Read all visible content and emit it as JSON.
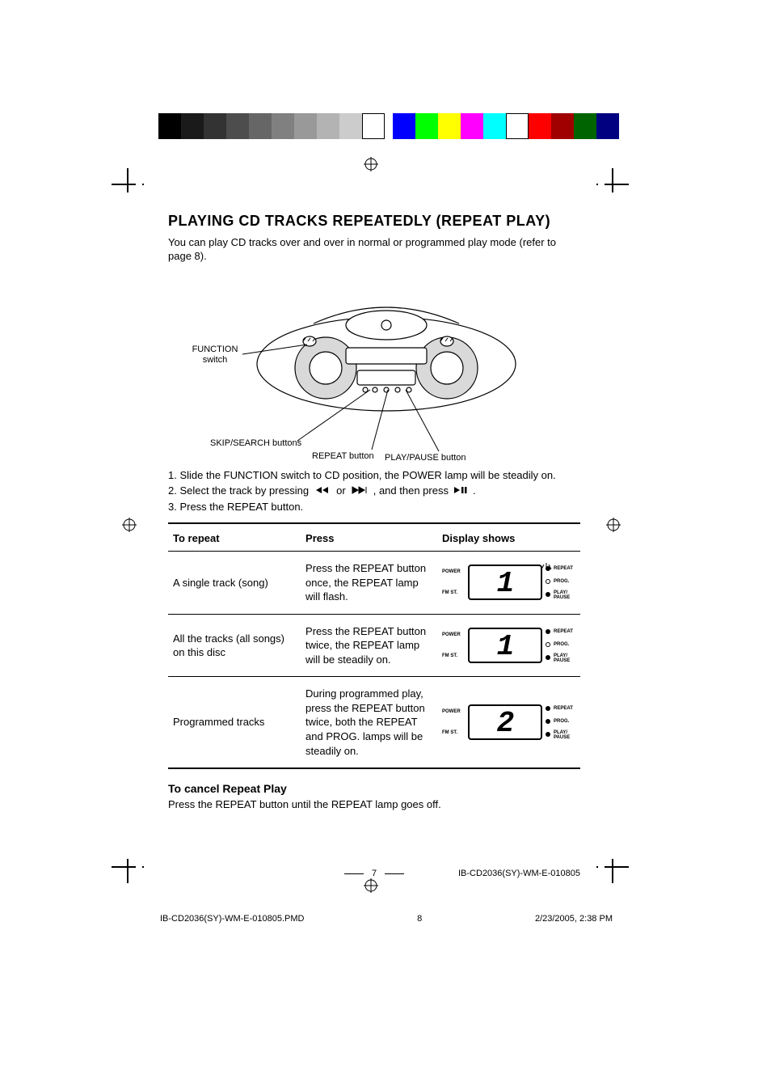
{
  "printer_marks": {
    "grayscale_bars": [
      "#000000",
      "#1a1a1a",
      "#333333",
      "#4d4d4d",
      "#666666",
      "#808080",
      "#999999",
      "#b3b3b3",
      "#cccccc",
      "#ffffff"
    ],
    "color_bars": [
      "#0000ff",
      "#00ff00",
      "#ffff00",
      "#ff00ff",
      "#00ffff",
      "#ffffff",
      "#ff0000",
      "#a00000",
      "#006400",
      "#000080"
    ]
  },
  "title": "PLAYING CD TRACKS REPEATEDLY (REPEAT PLAY)",
  "intro": "You can play CD tracks over and over in normal or programmed play mode (refer to page 8).",
  "diagram_callouts": {
    "function_switch": "FUNCTION switch",
    "skip_search": "SKIP/SEARCH buttons",
    "repeat_button": "REPEAT button",
    "play_pause": "PLAY/PAUSE button"
  },
  "steps": {
    "s1": "1. Slide the FUNCTION switch to CD position, the POWER lamp will be steadily on.",
    "s2a": "2. Select the track by pressing",
    "s2b": "or",
    "s2c": ", and then press",
    "s2d": ".",
    "s3": "3. Press the REPEAT button."
  },
  "table": {
    "headers": {
      "to_repeat": "To repeat",
      "press": "Press",
      "display": "Display shows"
    },
    "rows": [
      {
        "to_repeat": "A single track (song)",
        "press": "Press the REPEAT button once, the REPEAT lamp will flash.",
        "display": {
          "power_led": "on",
          "fmst_led": "off",
          "repeat_led": "on",
          "repeat_flash": true,
          "prog_led": "off",
          "play_led": "on",
          "digits": "1",
          "digit_fontsize": 36,
          "labels": {
            "power": "POWER",
            "fmst": "FM ST.",
            "repeat": "REPEAT",
            "prog": "PROG.",
            "play": "PLAY/\nPAUSE"
          }
        }
      },
      {
        "to_repeat": "All the tracks (all songs) on this disc",
        "press": "Press the REPEAT button twice, the REPEAT lamp will be steadily on.",
        "display": {
          "power_led": "on",
          "fmst_led": "off",
          "repeat_led": "on",
          "repeat_flash": false,
          "prog_led": "off",
          "play_led": "on",
          "digits": "1",
          "digit_fontsize": 36,
          "labels": {
            "power": "POWER",
            "fmst": "FM ST.",
            "repeat": "REPEAT",
            "prog": "PROG.",
            "play": "PLAY/\nPAUSE"
          }
        }
      },
      {
        "to_repeat": "Programmed tracks",
        "press": "During programmed play, press the REPEAT button twice, both the REPEAT and PROG. lamps will be steadily on.",
        "display": {
          "power_led": "on",
          "fmst_led": "off",
          "repeat_led": "on",
          "repeat_flash": false,
          "prog_led": "on",
          "play_led": "on",
          "digits": "2",
          "digit_fontsize": 36,
          "labels": {
            "power": "POWER",
            "fmst": "FM ST.",
            "repeat": "REPEAT",
            "prog": "PROG.",
            "play": "PLAY/\nPAUSE"
          }
        }
      }
    ]
  },
  "cancel": {
    "heading": "To cancel Repeat Play",
    "body": "Press the REPEAT button until the REPEAT lamp goes off."
  },
  "page_number": "7",
  "doc_code_right": "IB-CD2036(SY)-WM-E-010805",
  "footer": {
    "file": "IB-CD2036(SY)-WM-E-010805.PMD",
    "page": "8",
    "timestamp": "2/23/2005, 2:38 PM"
  }
}
